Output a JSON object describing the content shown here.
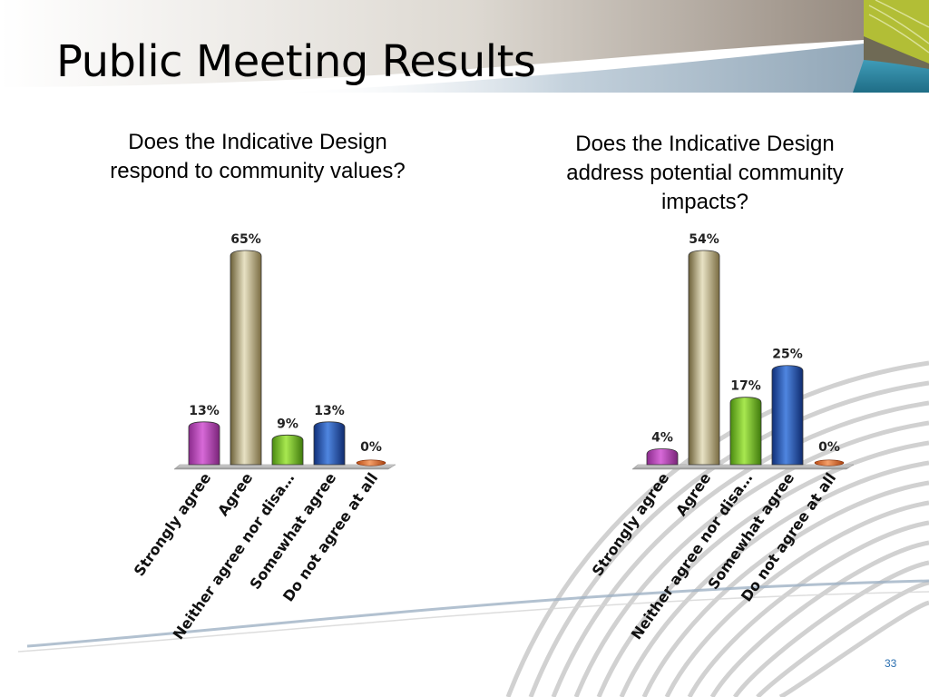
{
  "slide": {
    "title": "Public Meeting Results",
    "page_number": "33"
  },
  "colors": {
    "strongly_agree": "#b23fb5",
    "agree": "#9a8c5e",
    "neither": "#6fbf1a",
    "somewhat": "#1f4fae",
    "not_at_all": "#e2692a",
    "accent_teal": "#2f8aa6",
    "accent_green": "#b7c23a"
  },
  "chart_data": [
    {
      "type": "bar",
      "title": "Does the Indicative Design respond to community values?",
      "categories": [
        "Strongly agree",
        "Agree",
        "Neither agree nor disa…",
        "Somewhat agree",
        "Do not agree at all"
      ],
      "values": [
        13,
        65,
        9,
        13,
        0
      ],
      "data_labels": [
        "13%",
        "65%",
        "9%",
        "13%",
        "0%"
      ],
      "unit": "%",
      "ylim": [
        0,
        65
      ],
      "grid": false,
      "legend": "none"
    },
    {
      "type": "bar",
      "title": "Does the Indicative Design address potential community impacts?",
      "categories": [
        "Strongly agree",
        "Agree",
        "Neither agree nor disa…",
        "Somewhat agree",
        "Do not agree at all"
      ],
      "values": [
        4,
        54,
        17,
        25,
        0
      ],
      "data_labels": [
        "4%",
        "54%",
        "17%",
        "25%",
        "0%"
      ],
      "unit": "%",
      "ylim": [
        0,
        54
      ],
      "grid": false,
      "legend": "none"
    }
  ]
}
